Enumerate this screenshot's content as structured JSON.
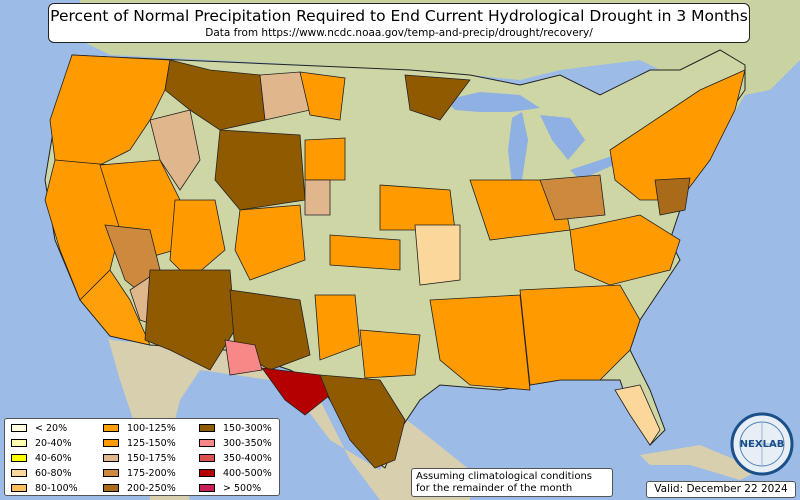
{
  "title": "Percent of Normal Precipitation Required to End Current Hydrological Drought in 3 Months",
  "subtitle": "Data from https://www.ncdc.noaa.gov/temp-and-precip/drought/recovery/",
  "legend": [
    {
      "label": "< 20%",
      "color": "#fffde0"
    },
    {
      "label": "20-40%",
      "color": "#ffffb0"
    },
    {
      "label": "40-60%",
      "color": "#ffff00"
    },
    {
      "label": "60-80%",
      "color": "#fcd79b"
    },
    {
      "label": "80-100%",
      "color": "#ffbd5e"
    },
    {
      "label": "100-125%",
      "color": "#ffa00a"
    },
    {
      "label": "125-150%",
      "color": "#ff9a00"
    },
    {
      "label": "150-175%",
      "color": "#e0b78c"
    },
    {
      "label": "175-200%",
      "color": "#cd8a3e"
    },
    {
      "label": "200-250%",
      "color": "#a96b1a"
    },
    {
      "label": "150-300%",
      "color": "#8f5a00"
    },
    {
      "label": "300-350%",
      "color": "#f88888"
    },
    {
      "label": "350-400%",
      "color": "#dc5050"
    },
    {
      "label": "400-500%",
      "color": "#b40000"
    },
    {
      "label": "> 500%",
      "color": "#c81e5a"
    }
  ],
  "note_line1": "Assuming climatological conditions",
  "note_line2": "for the remainder of the month",
  "valid": "Valid: December 22 2024",
  "logo_text": "NEXLAB",
  "colors": {
    "ocean": "#9cbbe6",
    "land_base": "#cdd6a4",
    "canada": "#c9d3a2",
    "mexico": "#d7cfae",
    "lakes": "#8fb0e2"
  }
}
